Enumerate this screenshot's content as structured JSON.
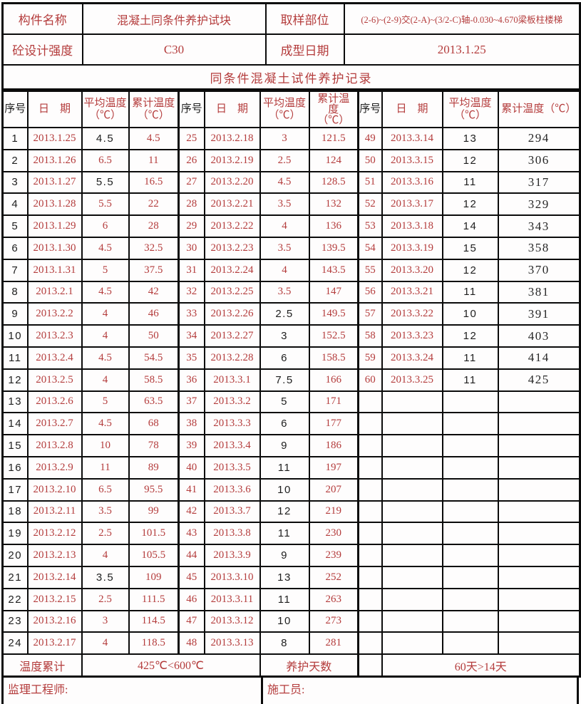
{
  "colors": {
    "accent_red": "#b43c3c",
    "text_black": "#1e1e1e",
    "border_black": "#0b0b0b"
  },
  "info": {
    "component_name_label": "构件名称",
    "component_name_value": "混凝土同条件养护试块",
    "sampling_location_label": "取样部位",
    "sampling_location_value": "(2-6)~(2-9)交(2-A)~(3/2-C)轴-0.030~4.670梁板柱楼梯",
    "strength_label": "砼设计强度",
    "strength_value": "C30",
    "molding_date_label": "成型日期",
    "molding_date_value": "2013.1.25",
    "record_title": "同条件混凝土试件养护记录"
  },
  "table": {
    "header_groups": [
      {
        "seq": "序号",
        "date": "日　期",
        "avg": [
          "平均温度",
          "（℃）"
        ],
        "cum": [
          "累计温度",
          "（℃）"
        ]
      },
      {
        "seq": "序号",
        "date": "日　期",
        "avg": [
          "平均温度",
          "（℃）"
        ],
        "cum": [
          "累计温",
          "度",
          "（℃）"
        ]
      },
      {
        "seq": "序号",
        "date": "日　期",
        "avg": [
          "平均温度",
          "（℃）"
        ],
        "cum": [
          "累计温度（℃）"
        ]
      }
    ],
    "rows": [
      [
        [
          "1",
          "b"
        ],
        [
          "2013.1.25",
          "r"
        ],
        [
          "4.5",
          "b"
        ],
        [
          "4.5",
          "r"
        ],
        [
          "25",
          "r"
        ],
        [
          "2013.2.18",
          "r"
        ],
        [
          "3",
          "r"
        ],
        [
          "121.5",
          "r"
        ],
        [
          "49",
          "r"
        ],
        [
          "2013.3.14",
          "r"
        ],
        [
          "13",
          "b"
        ],
        [
          "294",
          "k"
        ]
      ],
      [
        [
          "2",
          "b"
        ],
        [
          "2013.1.26",
          "r"
        ],
        [
          "6.5",
          "r"
        ],
        [
          "11",
          "r"
        ],
        [
          "26",
          "r"
        ],
        [
          "2013.2.19",
          "r"
        ],
        [
          "2.5",
          "r"
        ],
        [
          "124",
          "r"
        ],
        [
          "50",
          "r"
        ],
        [
          "2013.3.15",
          "r"
        ],
        [
          "12",
          "b"
        ],
        [
          "306",
          "k"
        ]
      ],
      [
        [
          "3",
          "b"
        ],
        [
          "2013.1.27",
          "r"
        ],
        [
          "5.5",
          "b"
        ],
        [
          "16.5",
          "r"
        ],
        [
          "27",
          "r"
        ],
        [
          "2013.2.20",
          "r"
        ],
        [
          "4.5",
          "r"
        ],
        [
          "128.5",
          "r"
        ],
        [
          "51",
          "r"
        ],
        [
          "2013.3.16",
          "r"
        ],
        [
          "11",
          "b"
        ],
        [
          "317",
          "k"
        ]
      ],
      [
        [
          "4",
          "b"
        ],
        [
          "2013.1.28",
          "r"
        ],
        [
          "5.5",
          "r"
        ],
        [
          "22",
          "r"
        ],
        [
          "28",
          "r"
        ],
        [
          "2013.2.21",
          "r"
        ],
        [
          "3.5",
          "r"
        ],
        [
          "132",
          "r"
        ],
        [
          "52",
          "r"
        ],
        [
          "2013.3.17",
          "r"
        ],
        [
          "12",
          "b"
        ],
        [
          "329",
          "k"
        ]
      ],
      [
        [
          "5",
          "b"
        ],
        [
          "2013.1.29",
          "r"
        ],
        [
          "6",
          "r"
        ],
        [
          "28",
          "r"
        ],
        [
          "29",
          "r"
        ],
        [
          "2013.2.22",
          "r"
        ],
        [
          "4",
          "r"
        ],
        [
          "136",
          "r"
        ],
        [
          "53",
          "r"
        ],
        [
          "2013.3.18",
          "r"
        ],
        [
          "14",
          "b"
        ],
        [
          "343",
          "k"
        ]
      ],
      [
        [
          "6",
          "b"
        ],
        [
          "2013.1.30",
          "r"
        ],
        [
          "4.5",
          "r"
        ],
        [
          "32.5",
          "r"
        ],
        [
          "30",
          "r"
        ],
        [
          "2013.2.23",
          "r"
        ],
        [
          "3.5",
          "r"
        ],
        [
          "139.5",
          "r"
        ],
        [
          "54",
          "r"
        ],
        [
          "2013.3.19",
          "r"
        ],
        [
          "15",
          "b"
        ],
        [
          "358",
          "k"
        ]
      ],
      [
        [
          "7",
          "b"
        ],
        [
          "2013.1.31",
          "r"
        ],
        [
          "5",
          "r"
        ],
        [
          "37.5",
          "r"
        ],
        [
          "31",
          "r"
        ],
        [
          "2013.2.24",
          "r"
        ],
        [
          "4",
          "r"
        ],
        [
          "143.5",
          "r"
        ],
        [
          "55",
          "r"
        ],
        [
          "2013.3.20",
          "r"
        ],
        [
          "12",
          "b"
        ],
        [
          "370",
          "k"
        ]
      ],
      [
        [
          "8",
          "b"
        ],
        [
          "2013.2.1",
          "r"
        ],
        [
          "4.5",
          "r"
        ],
        [
          "42",
          "r"
        ],
        [
          "32",
          "r"
        ],
        [
          "2013.2.25",
          "r"
        ],
        [
          "3.5",
          "r"
        ],
        [
          "147",
          "r"
        ],
        [
          "56",
          "r"
        ],
        [
          "2013.3.21",
          "r"
        ],
        [
          "11",
          "b"
        ],
        [
          "381",
          "k"
        ]
      ],
      [
        [
          "9",
          "b"
        ],
        [
          "2013.2.2",
          "r"
        ],
        [
          "4",
          "r"
        ],
        [
          "46",
          "r"
        ],
        [
          "33",
          "r"
        ],
        [
          "2013.2.26",
          "r"
        ],
        [
          "2.5",
          "b"
        ],
        [
          "149.5",
          "r"
        ],
        [
          "57",
          "r"
        ],
        [
          "2013.3.22",
          "r"
        ],
        [
          "10",
          "b"
        ],
        [
          "391",
          "k"
        ]
      ],
      [
        [
          "10",
          "b"
        ],
        [
          "2013.2.3",
          "r"
        ],
        [
          "4",
          "r"
        ],
        [
          "50",
          "r"
        ],
        [
          "34",
          "r"
        ],
        [
          "2013.2.27",
          "r"
        ],
        [
          "3",
          "b"
        ],
        [
          "152.5",
          "r"
        ],
        [
          "58",
          "r"
        ],
        [
          "2013.3.23",
          "r"
        ],
        [
          "12",
          "b"
        ],
        [
          "403",
          "k"
        ]
      ],
      [
        [
          "11",
          "b"
        ],
        [
          "2013.2.4",
          "r"
        ],
        [
          "4.5",
          "r"
        ],
        [
          "54.5",
          "r"
        ],
        [
          "35",
          "r"
        ],
        [
          "2013.2.28",
          "r"
        ],
        [
          "6",
          "b"
        ],
        [
          "158.5",
          "r"
        ],
        [
          "59",
          "r"
        ],
        [
          "2013.3.24",
          "r"
        ],
        [
          "11",
          "b"
        ],
        [
          "414",
          "k"
        ]
      ],
      [
        [
          "12",
          "b"
        ],
        [
          "2013.2.5",
          "r"
        ],
        [
          "4",
          "r"
        ],
        [
          "58.5",
          "r"
        ],
        [
          "36",
          "r"
        ],
        [
          "2013.3.1",
          "r"
        ],
        [
          "7.5",
          "b"
        ],
        [
          "166",
          "r"
        ],
        [
          "60",
          "r"
        ],
        [
          "2013.3.25",
          "r"
        ],
        [
          "11",
          "b"
        ],
        [
          "425",
          "k"
        ]
      ],
      [
        [
          "13",
          "b"
        ],
        [
          "2013.2.6",
          "r"
        ],
        [
          "5",
          "r"
        ],
        [
          "63.5",
          "r"
        ],
        [
          "37",
          "r"
        ],
        [
          "2013.3.2",
          "r"
        ],
        [
          "5",
          "b"
        ],
        [
          "171",
          "r"
        ],
        [
          "",
          "r"
        ],
        [
          "",
          "r"
        ],
        [
          "",
          "b"
        ],
        [
          "",
          "k"
        ]
      ],
      [
        [
          "14",
          "b"
        ],
        [
          "2013.2.7",
          "r"
        ],
        [
          "4.5",
          "r"
        ],
        [
          "68",
          "r"
        ],
        [
          "38",
          "r"
        ],
        [
          "2013.3.3",
          "r"
        ],
        [
          "6",
          "b"
        ],
        [
          "177",
          "r"
        ],
        [
          "",
          "r"
        ],
        [
          "",
          "r"
        ],
        [
          "",
          "b"
        ],
        [
          "",
          "k"
        ]
      ],
      [
        [
          "15",
          "b"
        ],
        [
          "2013.2.8",
          "r"
        ],
        [
          "10",
          "r"
        ],
        [
          "78",
          "r"
        ],
        [
          "39",
          "r"
        ],
        [
          "2013.3.4",
          "r"
        ],
        [
          "9",
          "b"
        ],
        [
          "186",
          "r"
        ],
        [
          "",
          "r"
        ],
        [
          "",
          "r"
        ],
        [
          "",
          "b"
        ],
        [
          "",
          "k"
        ]
      ],
      [
        [
          "16",
          "b"
        ],
        [
          "2013.2.9",
          "r"
        ],
        [
          "11",
          "r"
        ],
        [
          "89",
          "r"
        ],
        [
          "40",
          "r"
        ],
        [
          "2013.3.5",
          "r"
        ],
        [
          "11",
          "b"
        ],
        [
          "197",
          "r"
        ],
        [
          "",
          "r"
        ],
        [
          "",
          "r"
        ],
        [
          "",
          "b"
        ],
        [
          "",
          "k"
        ]
      ],
      [
        [
          "17",
          "b"
        ],
        [
          "2013.2.10",
          "r"
        ],
        [
          "6.5",
          "r"
        ],
        [
          "95.5",
          "r"
        ],
        [
          "41",
          "r"
        ],
        [
          "2013.3.6",
          "r"
        ],
        [
          "10",
          "b"
        ],
        [
          "207",
          "r"
        ],
        [
          "",
          "r"
        ],
        [
          "",
          "r"
        ],
        [
          "",
          "b"
        ],
        [
          "",
          "k"
        ]
      ],
      [
        [
          "18",
          "b"
        ],
        [
          "2013.2.11",
          "r"
        ],
        [
          "3.5",
          "r"
        ],
        [
          "99",
          "r"
        ],
        [
          "42",
          "r"
        ],
        [
          "2013.3.7",
          "r"
        ],
        [
          "12",
          "b"
        ],
        [
          "219",
          "r"
        ],
        [
          "",
          "r"
        ],
        [
          "",
          "r"
        ],
        [
          "",
          "b"
        ],
        [
          "",
          "k"
        ]
      ],
      [
        [
          "19",
          "b"
        ],
        [
          "2013.2.12",
          "r"
        ],
        [
          "2.5",
          "r"
        ],
        [
          "101.5",
          "r"
        ],
        [
          "43",
          "r"
        ],
        [
          "2013.3.8",
          "r"
        ],
        [
          "11",
          "b"
        ],
        [
          "230",
          "r"
        ],
        [
          "",
          "r"
        ],
        [
          "",
          "r"
        ],
        [
          "",
          "b"
        ],
        [
          "",
          "k"
        ]
      ],
      [
        [
          "20",
          "b"
        ],
        [
          "2013.2.13",
          "r"
        ],
        [
          "4",
          "r"
        ],
        [
          "105.5",
          "r"
        ],
        [
          "44",
          "r"
        ],
        [
          "2013.3.9",
          "r"
        ],
        [
          "9",
          "b"
        ],
        [
          "239",
          "r"
        ],
        [
          "",
          "r"
        ],
        [
          "",
          "r"
        ],
        [
          "",
          "b"
        ],
        [
          "",
          "k"
        ]
      ],
      [
        [
          "21",
          "b"
        ],
        [
          "2013.2.14",
          "r"
        ],
        [
          "3.5",
          "b"
        ],
        [
          "109",
          "r"
        ],
        [
          "45",
          "r"
        ],
        [
          "2013.3.10",
          "r"
        ],
        [
          "13",
          "b"
        ],
        [
          "252",
          "r"
        ],
        [
          "",
          "r"
        ],
        [
          "",
          "r"
        ],
        [
          "",
          "b"
        ],
        [
          "",
          "k"
        ]
      ],
      [
        [
          "22",
          "b"
        ],
        [
          "2013.2.15",
          "r"
        ],
        [
          "2.5",
          "r"
        ],
        [
          "111.5",
          "r"
        ],
        [
          "46",
          "r"
        ],
        [
          "2013.3.11",
          "r"
        ],
        [
          "11",
          "b"
        ],
        [
          "263",
          "r"
        ],
        [
          "",
          "r"
        ],
        [
          "",
          "r"
        ],
        [
          "",
          "b"
        ],
        [
          "",
          "k"
        ]
      ],
      [
        [
          "23",
          "b"
        ],
        [
          "2013.2.16",
          "r"
        ],
        [
          "3",
          "r"
        ],
        [
          "114.5",
          "r"
        ],
        [
          "47",
          "r"
        ],
        [
          "2013.3.12",
          "r"
        ],
        [
          "10",
          "b"
        ],
        [
          "273",
          "r"
        ],
        [
          "",
          "r"
        ],
        [
          "",
          "r"
        ],
        [
          "",
          "b"
        ],
        [
          "",
          "k"
        ]
      ],
      [
        [
          "24",
          "b"
        ],
        [
          "2013.2.17",
          "r"
        ],
        [
          "4",
          "r"
        ],
        [
          "118.5",
          "r"
        ],
        [
          "48",
          "r"
        ],
        [
          "2013.3.13",
          "r"
        ],
        [
          "8",
          "b"
        ],
        [
          "281",
          "r"
        ],
        [
          "",
          "r"
        ],
        [
          "",
          "r"
        ],
        [
          "",
          "b"
        ],
        [
          "",
          "k"
        ]
      ]
    ]
  },
  "footer": {
    "temp_total_label": "温度累计",
    "temp_total_value": "425℃<600℃",
    "curing_days_label": "养护天数",
    "spacer": "",
    "curing_days_value": "60天>14天"
  },
  "signature": {
    "supervisor_label": "监理工程师:",
    "constructor_label": "施工员:"
  }
}
